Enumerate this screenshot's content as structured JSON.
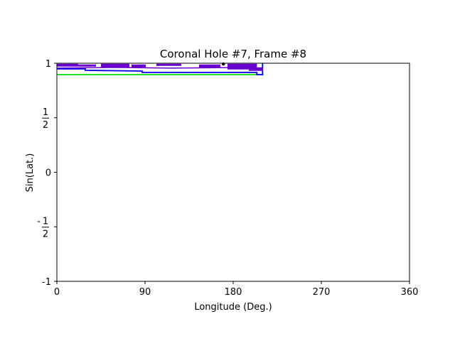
{
  "chart_data": {
    "type": "line",
    "title": "Coronal Hole #7, Frame #8",
    "xlabel": "Longitude (Deg.)",
    "ylabel": "Sin(Lat.)",
    "xlim": [
      0,
      360
    ],
    "ylim": [
      -1,
      1
    ],
    "grid": false,
    "x_ticks": [
      {
        "value": 0,
        "label": "0"
      },
      {
        "value": 90,
        "label": "90"
      },
      {
        "value": 180,
        "label": "180"
      },
      {
        "value": 270,
        "label": "270"
      },
      {
        "value": 360,
        "label": "360"
      }
    ],
    "y_ticks": [
      {
        "value": -1,
        "label": "-1",
        "kind": "text"
      },
      {
        "value": -0.5,
        "label": "-",
        "numerator": "1",
        "denominator": "2",
        "kind": "fraction"
      },
      {
        "value": 0,
        "label": "0",
        "kind": "text"
      },
      {
        "value": 0.5,
        "label": "",
        "numerator": "1",
        "denominator": "2",
        "kind": "fraction"
      },
      {
        "value": 1,
        "label": "1",
        "kind": "text"
      }
    ],
    "series": [
      {
        "role": "bounding-box-outer",
        "color": "#00dd00",
        "x": [
          0,
          210,
          210,
          0
        ],
        "y": [
          0.895,
          0.895,
          1.0,
          1.0
        ]
      },
      {
        "role": "bounding-box-inner",
        "color": "#0000ee",
        "x": [
          0,
          210,
          210,
          0
        ],
        "y": [
          0.895,
          0.895,
          1.0,
          1.0
        ]
      },
      {
        "role": "hole-region-band",
        "color": "#6a00d0",
        "x": [
          0,
          210
        ],
        "y": [
          0.955,
          0.995
        ]
      },
      {
        "role": "centroid",
        "color": "#000000",
        "x": [
          170
        ],
        "y": [
          0.993
        ]
      }
    ]
  }
}
